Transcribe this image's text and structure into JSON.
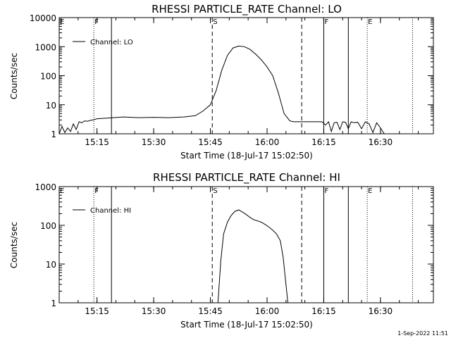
{
  "footer": "1-Sep-2022 11:51",
  "chart_data": [
    {
      "type": "line",
      "title": "RHESSI PARTICLE_RATE Channel: LO",
      "xlabel": "Start Time (18-Jul-17 15:02:50)",
      "ylabel": "Counts/sec",
      "yscale": "log",
      "xlim": [
        "15:05:00",
        "16:44:00"
      ],
      "ylim": [
        1,
        10000
      ],
      "x_ticks": [
        "15:15",
        "15:30",
        "15:45",
        "16:00",
        "16:15",
        "16:30"
      ],
      "y_ticks": [
        "1",
        "10",
        "100",
        "1000",
        "10000"
      ],
      "legend": "Channel: LO",
      "legend_position": "top-left",
      "markers": [
        {
          "label": "E",
          "time": "15:05:00",
          "style": "dotted"
        },
        {
          "label": "F",
          "time": "15:14:10",
          "style": "dotted"
        },
        {
          "label": "",
          "time": "15:18:50",
          "style": "solid"
        },
        {
          "label": "S",
          "time": "15:45:30",
          "style": "dashed"
        },
        {
          "label": "",
          "time": "16:09:10",
          "style": "dashed"
        },
        {
          "label": "F",
          "time": "16:15:00",
          "style": "solid"
        },
        {
          "label": "",
          "time": "16:21:30",
          "style": "solid"
        },
        {
          "label": "E",
          "time": "16:26:30",
          "style": "dotted"
        },
        {
          "label": "",
          "time": "16:38:30",
          "style": "dotted"
        }
      ],
      "series": [
        {
          "x": [
            "15:05:00",
            "15:05:45",
            "15:06:30",
            "15:07:15",
            "15:08:00",
            "15:08:45",
            "15:09:30",
            "15:10:15",
            "15:11:00",
            "15:11:45",
            "15:12:30",
            "15:13:15",
            "15:14:00",
            "15:15:00",
            "15:18:00",
            "15:22:00",
            "15:26:00",
            "15:30:00",
            "15:34:00",
            "15:38:00",
            "15:41:00",
            "15:43:00",
            "15:45:00",
            "15:46:30",
            "15:48:00",
            "15:49:30",
            "15:51:00",
            "15:52:30",
            "15:54:00",
            "15:55:30",
            "15:57:00",
            "15:58:30",
            "16:00:00",
            "16:01:30",
            "16:03:00",
            "16:04:30",
            "16:06:00",
            "16:07:00",
            "16:08:30",
            "16:09:30",
            "16:12:00",
            "16:14:30",
            "16:15:30",
            "16:16:15",
            "16:17:00",
            "16:17:45",
            "16:18:30",
            "16:19:15",
            "16:20:00",
            "16:20:45",
            "16:21:30",
            "16:22:15",
            "16:23:00",
            "16:24:00",
            "16:25:00",
            "16:26:00",
            "16:27:00",
            "16:28:00",
            "16:29:00",
            "16:30:00",
            "16:31:00",
            "16:32:00",
            "16:33:00"
          ],
          "y": [
            1.0,
            1.8,
            1.1,
            1.6,
            1.2,
            2.2,
            1.4,
            2.6,
            2.4,
            2.8,
            2.7,
            2.9,
            3.0,
            3.3,
            3.5,
            3.8,
            3.6,
            3.7,
            3.6,
            3.8,
            4.2,
            6.0,
            10,
            30,
            150,
            500,
            900,
            1050,
            1000,
            800,
            550,
            350,
            200,
            100,
            25,
            5,
            2.8,
            2.6,
            2.6,
            2.6,
            2.6,
            2.6,
            2.0,
            2.6,
            1.2,
            2.4,
            2.5,
            1.4,
            2.6,
            2.5,
            1.5,
            2.6,
            2.4,
            2.5,
            1.5,
            2.6,
            2.2,
            1.1,
            2.4,
            1.6,
            1.0,
            1.0,
            1.0
          ]
        }
      ]
    },
    {
      "type": "line",
      "title": "RHESSI PARTICLE_RATE Channel: HI",
      "xlabel": "Start Time (18-Jul-17 15:02:50)",
      "ylabel": "Counts/sec",
      "yscale": "log",
      "xlim": [
        "15:05:00",
        "16:44:00"
      ],
      "ylim": [
        1,
        1000
      ],
      "x_ticks": [
        "15:15",
        "15:30",
        "15:45",
        "16:00",
        "16:15",
        "16:30"
      ],
      "y_ticks": [
        "1",
        "10",
        "100",
        "1000"
      ],
      "legend": "Channel: HI",
      "legend_position": "top-left",
      "markers": [
        {
          "label": "E",
          "time": "15:05:00",
          "style": "dotted"
        },
        {
          "label": "F",
          "time": "15:14:10",
          "style": "dotted"
        },
        {
          "label": "",
          "time": "15:18:50",
          "style": "solid"
        },
        {
          "label": "S",
          "time": "15:45:30",
          "style": "dashed"
        },
        {
          "label": "",
          "time": "16:09:10",
          "style": "dashed"
        },
        {
          "label": "F",
          "time": "16:15:00",
          "style": "solid"
        },
        {
          "label": "",
          "time": "16:21:30",
          "style": "solid"
        },
        {
          "label": "E",
          "time": "16:26:30",
          "style": "dotted"
        },
        {
          "label": "",
          "time": "16:38:30",
          "style": "dotted"
        }
      ],
      "series": [
        {
          "x": [
            "15:47:00",
            "15:47:45",
            "15:48:30",
            "15:49:30",
            "15:50:30",
            "15:51:30",
            "15:52:30",
            "15:53:30",
            "15:54:30",
            "15:55:30",
            "15:56:30",
            "15:57:30",
            "15:58:30",
            "15:59:30",
            "16:00:30",
            "16:01:30",
            "16:02:30",
            "16:03:30",
            "16:04:15",
            "16:05:00",
            "16:05:30"
          ],
          "y": [
            1.0,
            12,
            60,
            120,
            180,
            230,
            250,
            220,
            190,
            160,
            140,
            130,
            120,
            105,
            90,
            75,
            60,
            40,
            15,
            3,
            1.0
          ]
        }
      ]
    }
  ]
}
